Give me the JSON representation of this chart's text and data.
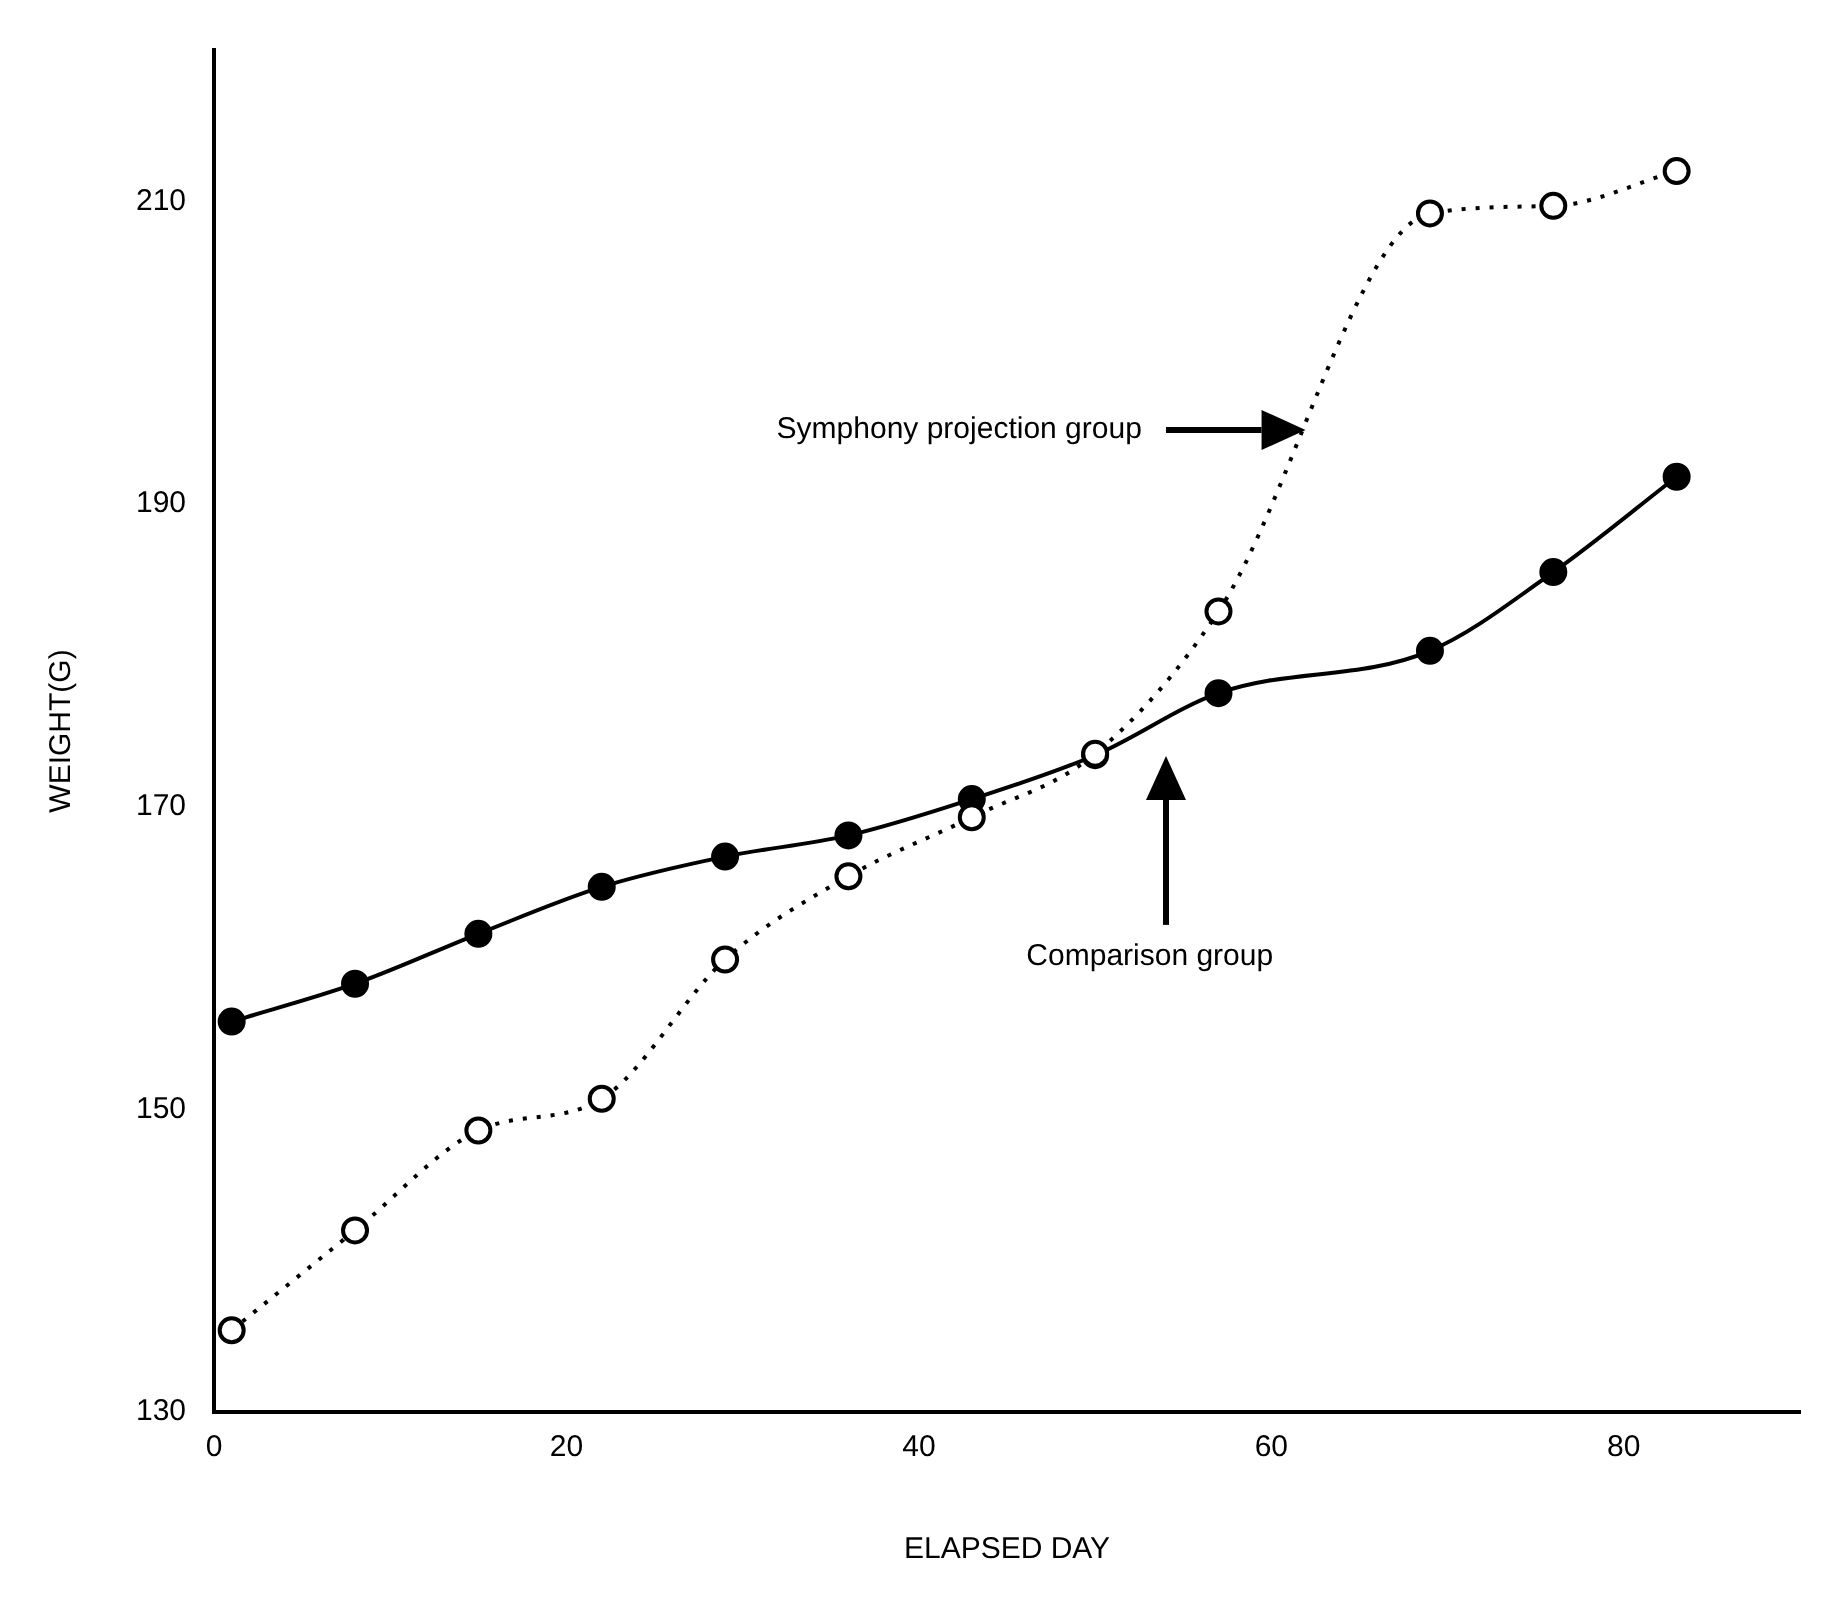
{
  "chart_data": {
    "type": "line",
    "xlabel": "ELAPSED DAY",
    "ylabel": "WEIGHT(G)",
    "x": [
      1,
      8,
      15,
      22,
      29,
      36,
      43,
      50,
      57,
      69,
      76,
      83
    ],
    "series": [
      {
        "color": "#000000",
        "line_style": "solid",
        "values": [
          155.8,
          158.3,
          161.6,
          164.7,
          166.7,
          168.1,
          170.5,
          173.4,
          177.5,
          180.3,
          185.5,
          191.8
        ]
      },
      {
        "color": "#000000",
        "line_style": "dotted",
        "values": [
          135.4,
          142.0,
          148.6,
          150.7,
          159.9,
          165.4,
          169.3,
          173.5,
          182.9,
          209.2,
          209.7,
          212.0
        ]
      }
    ],
    "xlim": [
      0,
      90
    ],
    "xticks": [
      0,
      20,
      40,
      60,
      80
    ],
    "ylim": [
      130,
      220
    ],
    "yticks": [
      130,
      150,
      170,
      190,
      210
    ],
    "marker": "circle",
    "grid": false,
    "legend": false,
    "annotations": [
      "Symphony projection group",
      "Comparison group"
    ]
  }
}
